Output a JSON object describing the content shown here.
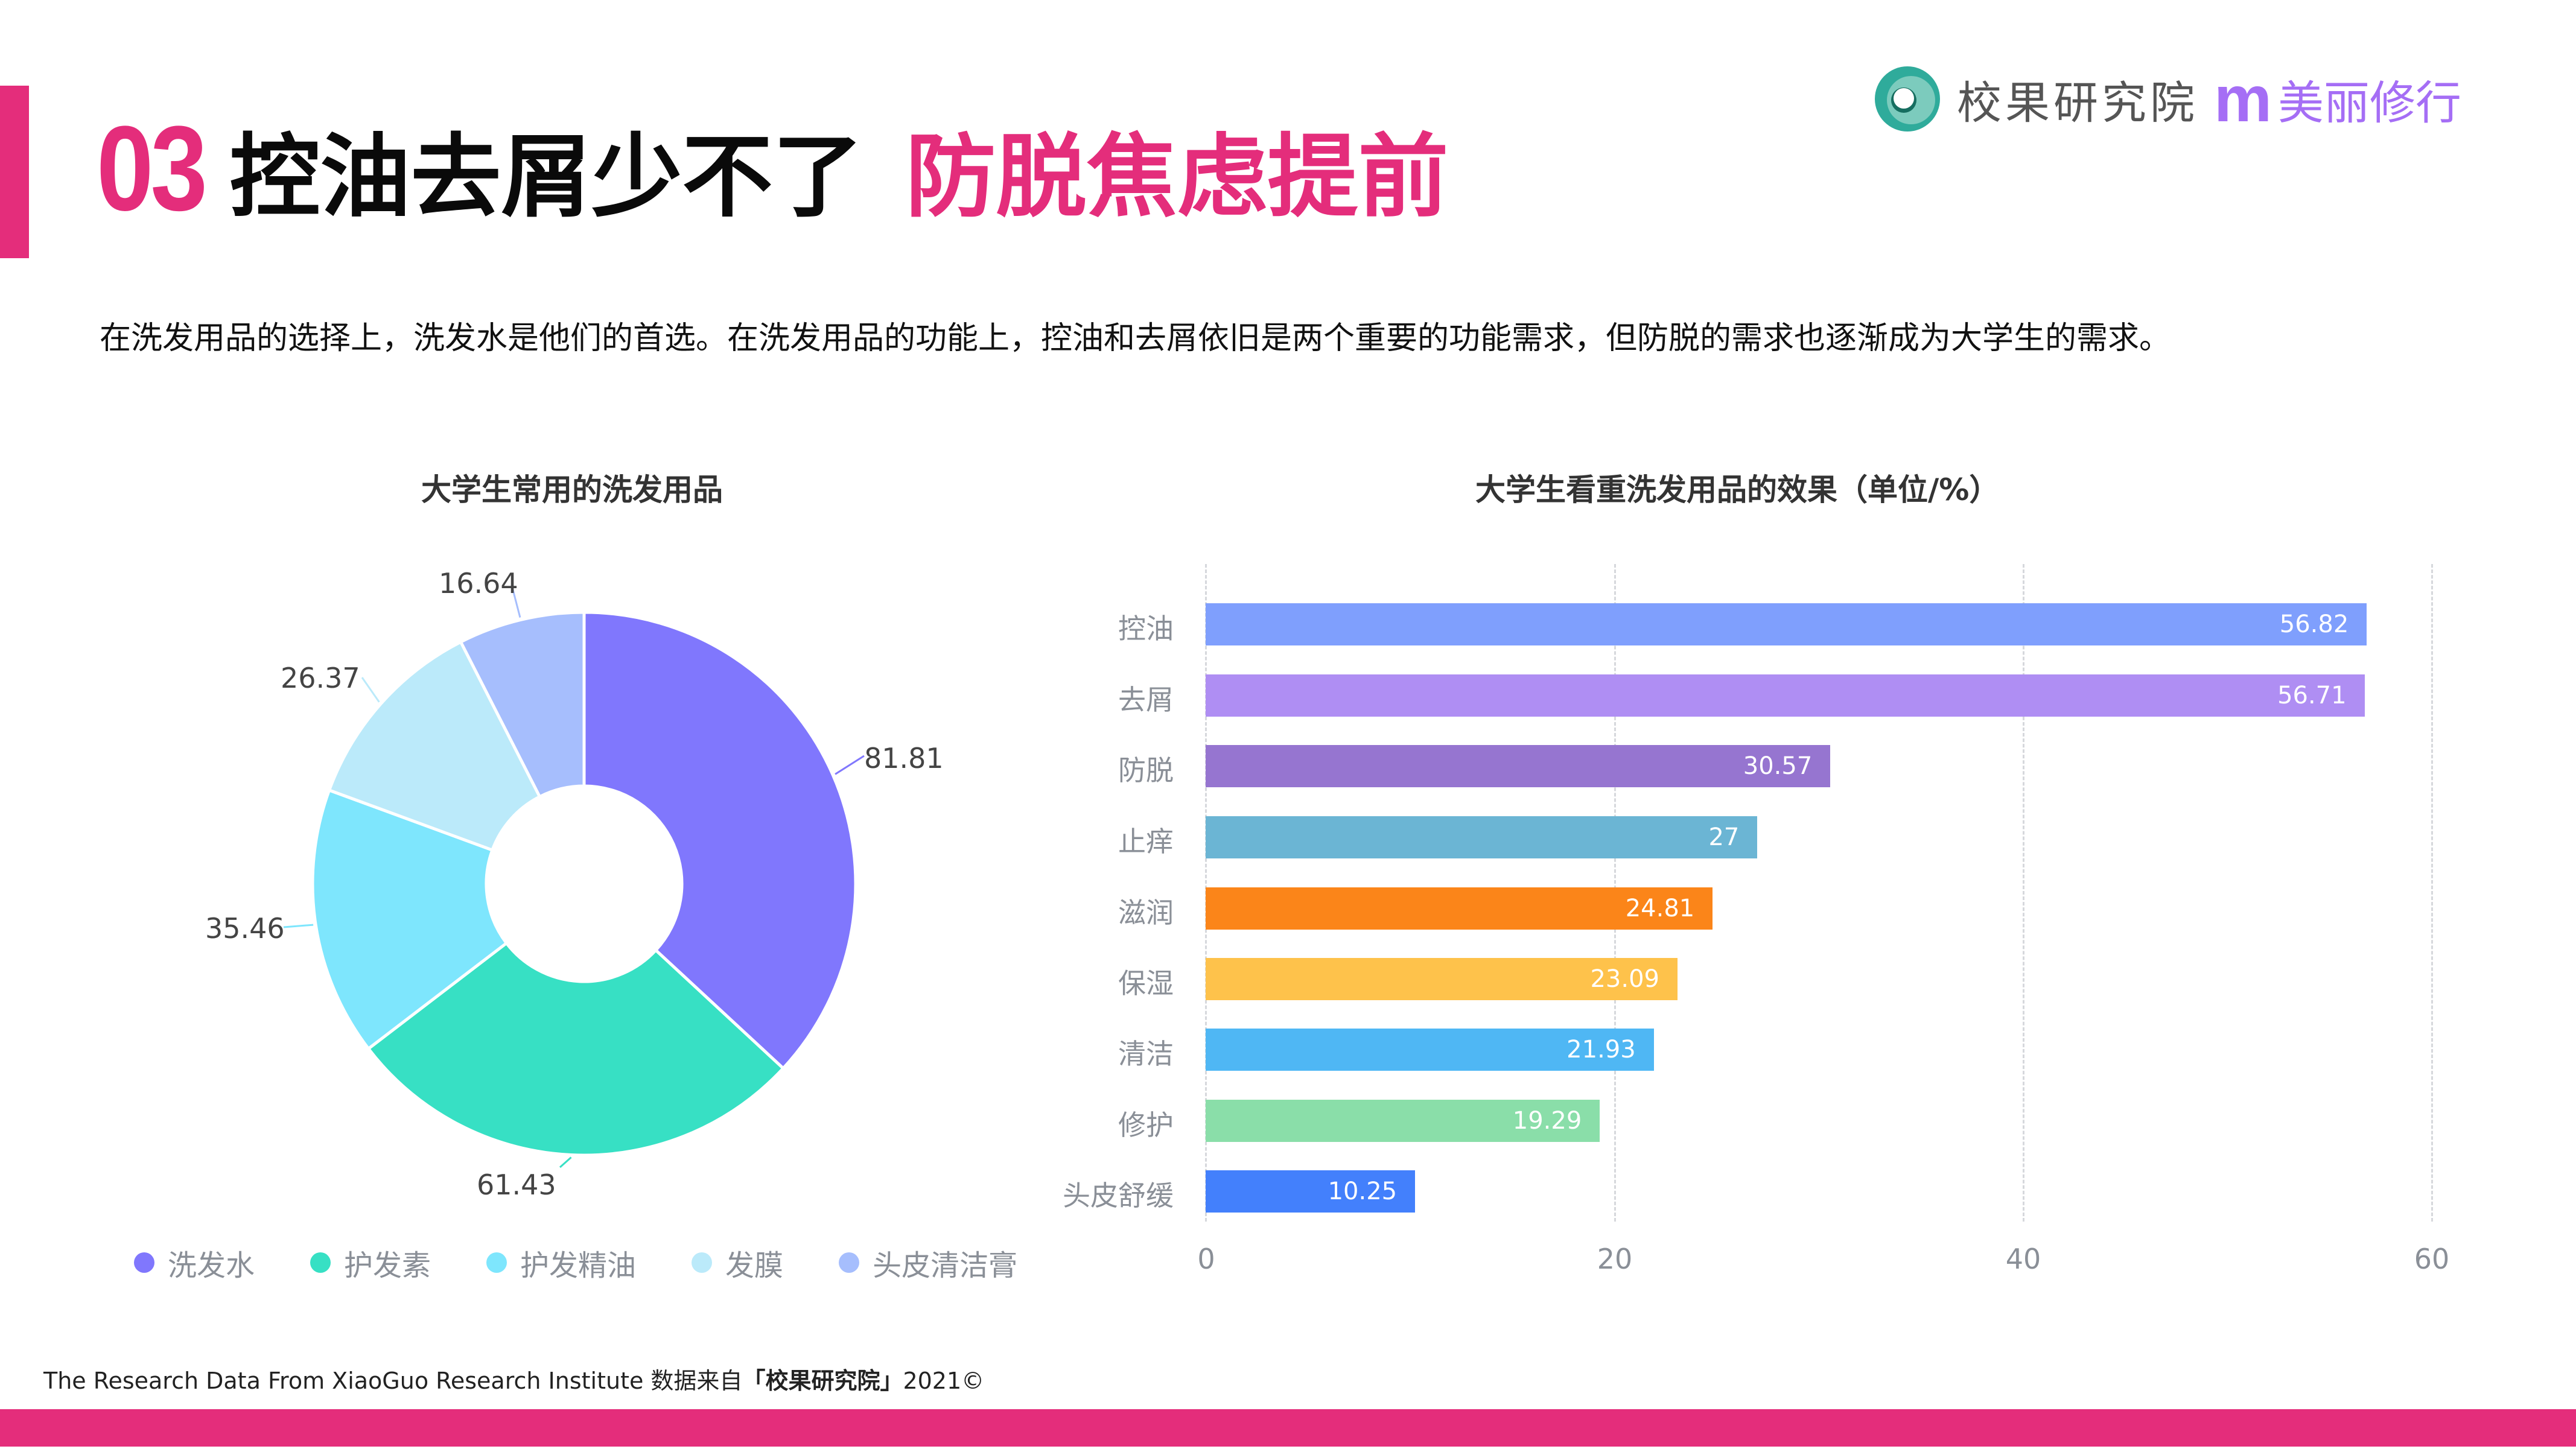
{
  "header": {
    "number": "03",
    "title_black": "控油去屑少不了",
    "title_pink": "防脱焦虑提前",
    "accent_color": "#e42d7b"
  },
  "logo": {
    "org_name": "校果研究院",
    "partner_mark": "m",
    "partner_name": "美丽修行"
  },
  "subtitle": "在洗发用品的选择上，洗发水是他们的首选。在洗发用品的功能上，控油和去屑依旧是两个重要的功能需求，但防脱的需求也逐渐成为大学生的需求。",
  "footer": {
    "prefix": "The Research Data From XiaoGuo Research Institute 数据来自",
    "source": "「校果研究院」",
    "suffix": "2021©"
  },
  "chart_data": [
    {
      "type": "pie",
      "variant": "donut",
      "title": "大学生常用的洗发用品",
      "categories": [
        "洗发水",
        "护发素",
        "护发精油",
        "发膜",
        "头皮清洁膏"
      ],
      "values": [
        81.81,
        61.43,
        35.46,
        26.37,
        16.64
      ],
      "labels": [
        "81.81",
        "61.43",
        "35.46",
        "26.37",
        "16.64"
      ],
      "colors": [
        "#8077fd",
        "#37e0c4",
        "#7ee6fd",
        "#bbeafa",
        "#a6befd"
      ],
      "legend_position": "bottom"
    },
    {
      "type": "bar",
      "orientation": "horizontal",
      "title": "大学生看重洗发用品的效果（单位/%）",
      "categories": [
        "控油",
        "去屑",
        "防脱",
        "止痒",
        "滋润",
        "保湿",
        "清洁",
        "修护",
        "头皮舒缓"
      ],
      "values": [
        56.82,
        56.71,
        30.57,
        27,
        24.81,
        23.09,
        21.93,
        19.29,
        10.25
      ],
      "labels": [
        "56.82",
        "56.71",
        "30.57",
        "27",
        "24.81",
        "23.09",
        "21.93",
        "19.29",
        "10.25"
      ],
      "colors": [
        "#7f9ffd",
        "#af8ef3",
        "#9675d0",
        "#6bb5d4",
        "#fb8519",
        "#fec24b",
        "#4fb7f4",
        "#8adea9",
        "#4380fc"
      ],
      "xlabel": "",
      "ylabel": "",
      "xlim": [
        0,
        60
      ],
      "xticks": [
        "0",
        "20",
        "40",
        "60"
      ],
      "grid": "vertical dashed"
    }
  ]
}
